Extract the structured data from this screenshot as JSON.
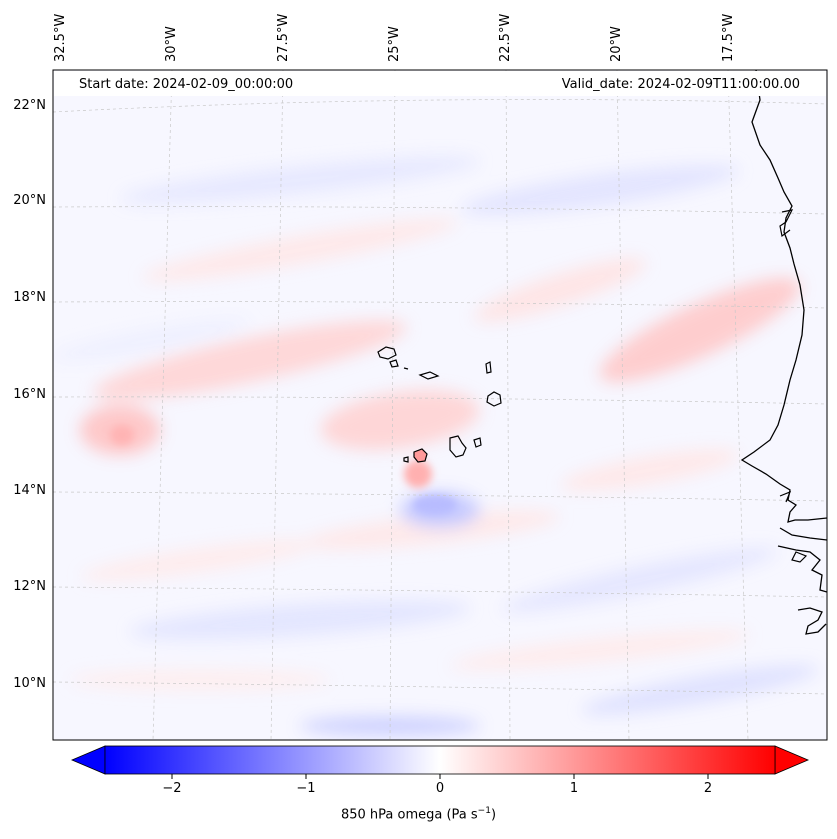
{
  "header": {
    "start_date": "Start date: 2024-02-09_00:00:00",
    "valid_date": "Valid_date: 2024-02-09T11:00:00.00"
  },
  "axes": {
    "lon_ticks": [
      "32.5°W",
      "30°W",
      "27.5°W",
      "25°W",
      "22.5°W",
      "20°W",
      "17.5°W"
    ],
    "lat_ticks": [
      "22°N",
      "20°N",
      "18°N",
      "16°N",
      "14°N",
      "12°N",
      "10°N"
    ]
  },
  "colorbar": {
    "ticks": [
      "−2",
      "−1",
      "0",
      "1",
      "2"
    ],
    "label": "850 hPa omega (Pa s",
    "label_exp": "−1",
    "label_close": ")",
    "range": [
      -2.6,
      2.6
    ],
    "colors": {
      "neg": "#0000ff",
      "mid": "#ffffff",
      "pos": "#ff0000"
    },
    "extend": "both"
  },
  "map": {
    "projection": "conic",
    "field": "850 hPa omega",
    "coastlines": true,
    "gridlines": "dashed-grey"
  }
}
